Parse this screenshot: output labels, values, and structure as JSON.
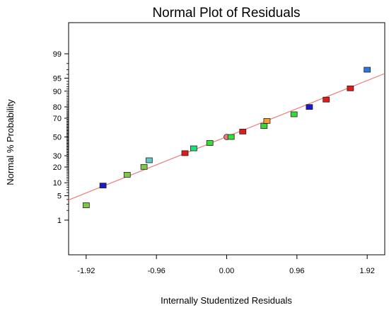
{
  "chart_data": {
    "type": "scatter",
    "title": "Normal Plot of Residuals",
    "xlabel": "Internally Studentized Residuals",
    "ylabel": "Normal % Probability",
    "xlim": [
      -2.16,
      2.16
    ],
    "x_ticks": [
      -1.92,
      -0.96,
      0.0,
      0.96,
      1.92
    ],
    "x_tick_labels": [
      "-1.92",
      "-0.96",
      "0.00",
      "0.96",
      "1.92"
    ],
    "y_scale": "normal-probability",
    "y_ticks": [
      1,
      5,
      10,
      20,
      30,
      50,
      70,
      80,
      90,
      95,
      99
    ],
    "y_tick_labels": [
      "1",
      "5",
      "10",
      "20",
      "30",
      "50",
      "70",
      "80",
      "90",
      "95",
      "99"
    ],
    "grid": false,
    "reference_line": {
      "color": "#f07878",
      "from": [
        -2.16,
        3.9
      ],
      "to": [
        2.16,
        96.2
      ]
    },
    "points": [
      {
        "x": -1.92,
        "y": 2.8,
        "color": "#7ec843"
      },
      {
        "x": -1.69,
        "y": 8.7,
        "color": "#1a1acc"
      },
      {
        "x": -1.36,
        "y": 14.5,
        "color": "#7ec843"
      },
      {
        "x": -1.13,
        "y": 20.1,
        "color": "#7ec843"
      },
      {
        "x": -1.06,
        "y": 25.7,
        "color": "#5fc8c8"
      },
      {
        "x": -0.57,
        "y": 32.5,
        "color": "#e31a1a"
      },
      {
        "x": -0.45,
        "y": 37.5,
        "color": "#1ee07a"
      },
      {
        "x": -0.23,
        "y": 43.3,
        "color": "#33dd33"
      },
      {
        "x": 0.0,
        "y": 50.0,
        "color": "#f07878",
        "shape": "circle"
      },
      {
        "x": 0.06,
        "y": 50.0,
        "color": "#33dd33"
      },
      {
        "x": 0.22,
        "y": 56.0,
        "color": "#e31a1a"
      },
      {
        "x": 0.51,
        "y": 62.0,
        "color": "#33dd33"
      },
      {
        "x": 0.55,
        "y": 67.3,
        "color": "#f0a030"
      },
      {
        "x": 0.92,
        "y": 73.7,
        "color": "#33dd33"
      },
      {
        "x": 1.13,
        "y": 79.9,
        "color": "#1a1acc"
      },
      {
        "x": 1.36,
        "y": 85.2,
        "color": "#e31a1a"
      },
      {
        "x": 1.69,
        "y": 91.3,
        "color": "#e31a1a"
      },
      {
        "x": 1.92,
        "y": 97.0,
        "color": "#2a78e0"
      }
    ]
  }
}
